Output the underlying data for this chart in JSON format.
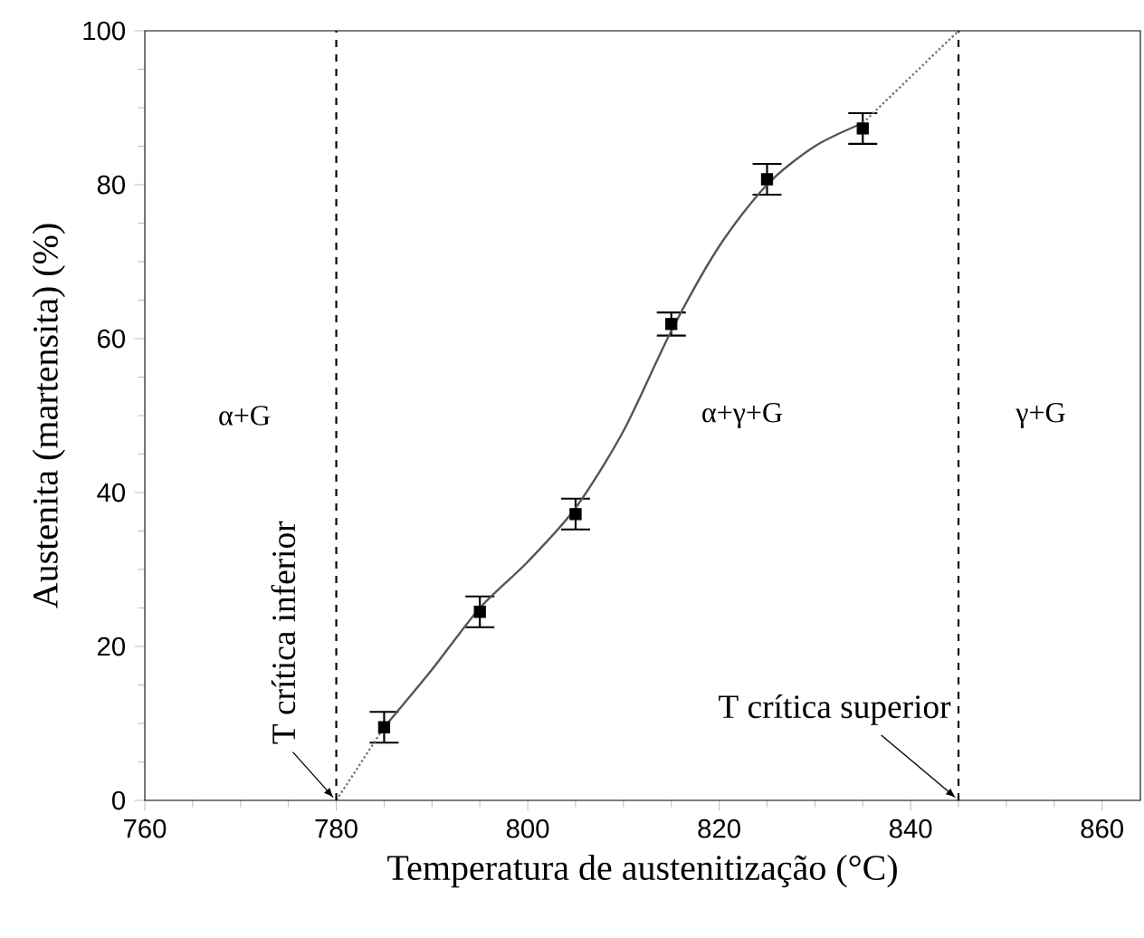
{
  "chart_data": {
    "type": "scatter",
    "xlabel": "Temperatura de austenitização (°C)",
    "ylabel": "Austenita (martensita) (%)",
    "xlim": [
      760,
      864
    ],
    "ylim": [
      0,
      100
    ],
    "xticks": [
      760,
      780,
      800,
      820,
      840,
      860
    ],
    "yticks": [
      0,
      20,
      40,
      60,
      80,
      100
    ],
    "grid": false,
    "series": [
      {
        "color": "#000000",
        "marker": "square",
        "x": [
          785,
          795,
          805,
          815,
          825,
          835
        ],
        "values": [
          9.5,
          24.5,
          37.2,
          61.9,
          80.7,
          87.3
        ],
        "errors": [
          2,
          2,
          2,
          1.5,
          2,
          2
        ]
      },
      {
        "type": "line",
        "color": "#555555",
        "line_style": "solid",
        "x": [
          785,
          790,
          795,
          800,
          805,
          810,
          815,
          820,
          825,
          830,
          835
        ],
        "values": [
          9.5,
          17,
          25,
          31,
          38,
          48,
          61,
          72,
          80,
          85,
          88
        ]
      },
      {
        "type": "line",
        "color": "#777777",
        "line_style": "dotted",
        "x": [
          780,
          785
        ],
        "values": [
          0,
          9.5
        ]
      },
      {
        "type": "line",
        "color": "#777777",
        "line_style": "dotted",
        "x": [
          835,
          845
        ],
        "values": [
          88,
          100
        ]
      }
    ],
    "ref_lines": [
      {
        "axis": "x",
        "value": 780,
        "label": "T crítica inferior",
        "line_style": "dashed"
      },
      {
        "axis": "x",
        "value": 845,
        "label": "T crítica superior",
        "line_style": "dashed"
      }
    ],
    "annotations": [
      "α+G",
      "α+γ+G",
      "γ+G"
    ]
  }
}
